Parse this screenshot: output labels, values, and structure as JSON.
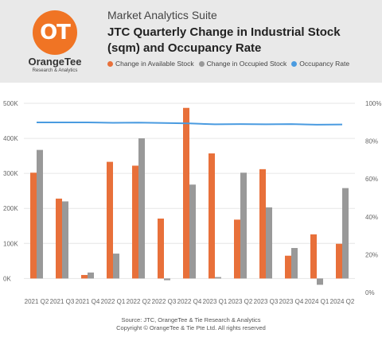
{
  "header": {
    "logo_mark": "OT",
    "logo_name": "OrangeTee",
    "logo_sub": "Research & Analytics",
    "app_title": "Market Analytics Suite"
  },
  "colors": {
    "available": "#e8703a",
    "occupied": "#999999",
    "occupancy": "#4a9be0",
    "grid": "#e6e6e6",
    "header_bg": "#e9e9e9",
    "brand": "#f07424"
  },
  "chart_data": {
    "type": "bar",
    "title": "JTC Quarterly Change in Industrial Stock (sqm) and Occupancy Rate",
    "categories": [
      "2021 Q2",
      "2021 Q3",
      "2021 Q4",
      "2022 Q1",
      "2022 Q2",
      "2022 Q3",
      "2022 Q4",
      "2023 Q1",
      "2023 Q2",
      "2023 Q3",
      "2023 Q4",
      "2024 Q1",
      "2024 Q2"
    ],
    "series": [
      {
        "name": "Change in Available Stock",
        "axis": "left",
        "kind": "bar",
        "values": [
          302000,
          228000,
          10000,
          333000,
          322000,
          171000,
          487000,
          357000,
          168000,
          312000,
          65000,
          126000,
          99000
        ]
      },
      {
        "name": "Change in Occupied Stock",
        "axis": "left",
        "kind": "bar",
        "values": [
          367000,
          220000,
          17000,
          71000,
          400000,
          -5000,
          268000,
          4000,
          302000,
          203000,
          87000,
          -18000,
          258000
        ]
      },
      {
        "name": "Occupancy Rate",
        "axis": "right",
        "kind": "line",
        "values": [
          89.9,
          89.9,
          89.9,
          89.7,
          89.8,
          89.6,
          89.4,
          88.9,
          89.0,
          88.9,
          89.0,
          88.7,
          88.8
        ]
      }
    ],
    "ylim_left": [
      -40000,
      500000
    ],
    "yticks_left": [
      "0K",
      "100K",
      "200K",
      "300K",
      "400K",
      "500K"
    ],
    "yticks_left_values": [
      0,
      100000,
      200000,
      300000,
      400000,
      500000
    ],
    "ylim_right": [
      0,
      100
    ],
    "yticks_right": [
      "0%",
      "20%",
      "40%",
      "60%",
      "80%",
      "100%"
    ],
    "yticks_right_values": [
      0,
      20,
      40,
      60,
      80,
      100
    ],
    "grid": true,
    "legend_position": "top"
  },
  "footer": {
    "source": "Source: JTC, OrangeTee & Tie Research & Analytics",
    "copyright": "Copyright © OrangeTee & Tie Pte Ltd. All rights reserved"
  }
}
